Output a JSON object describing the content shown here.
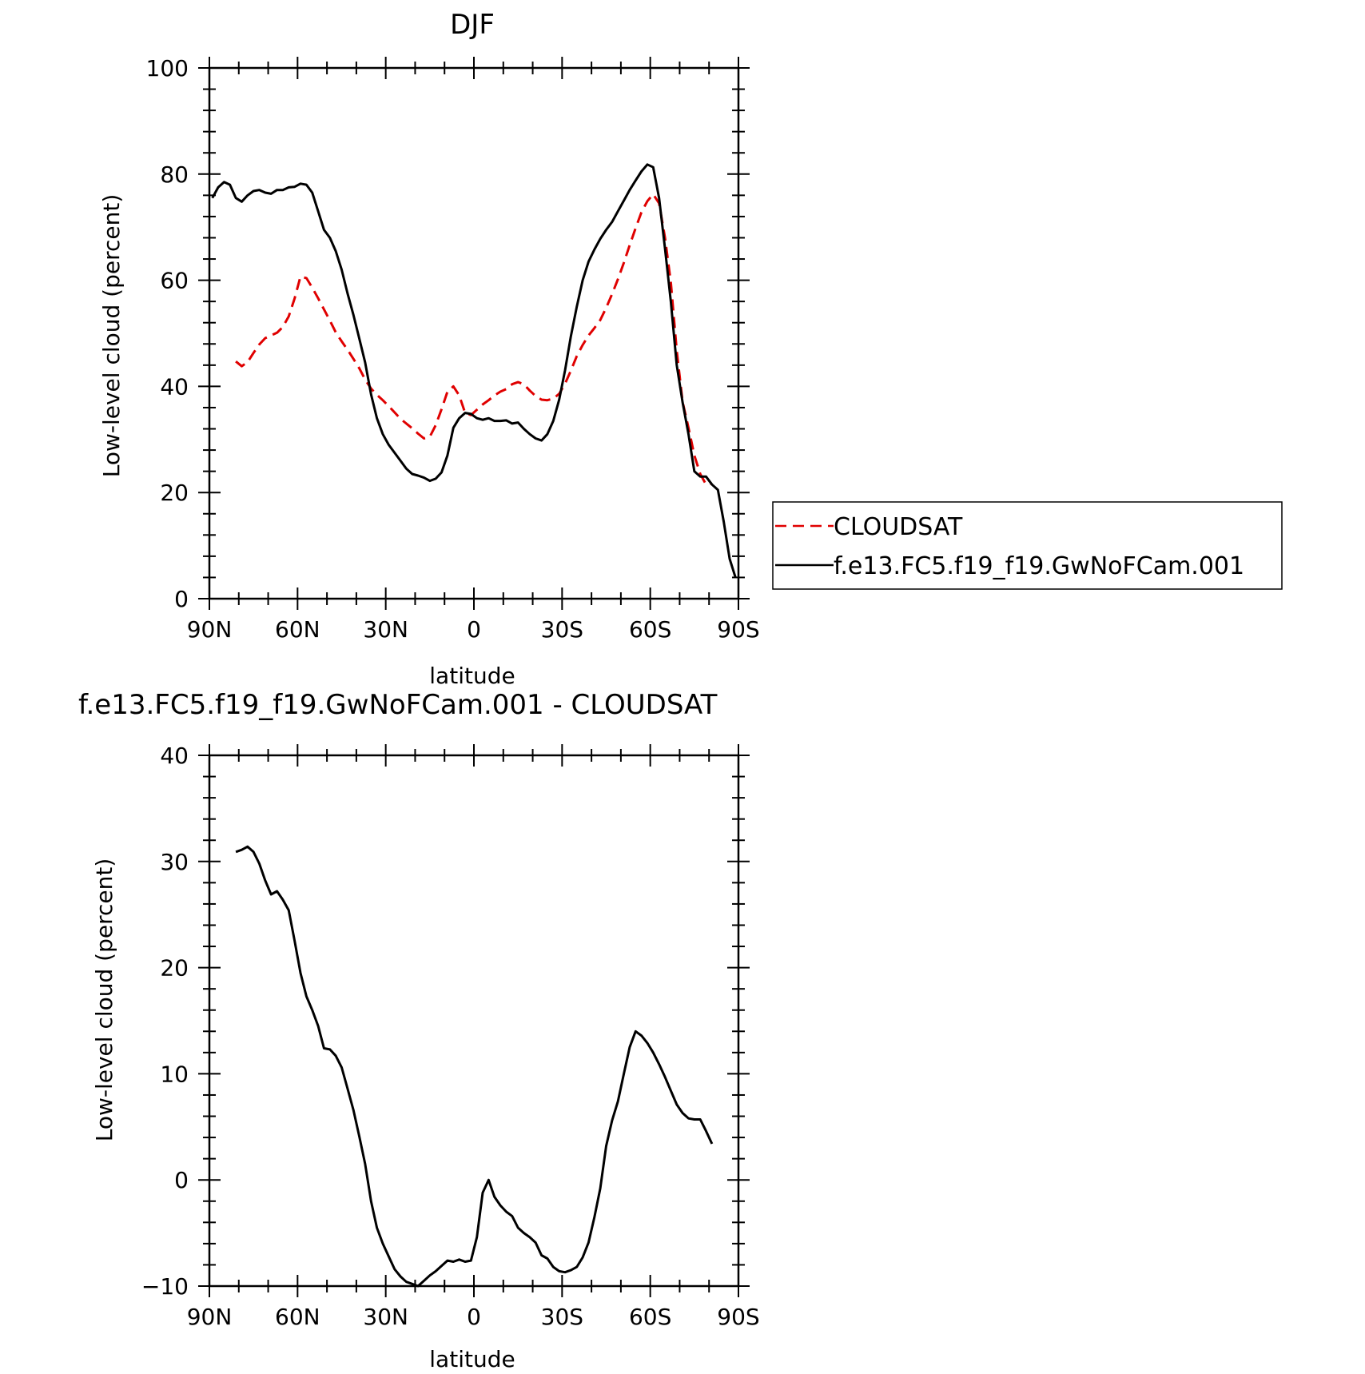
{
  "chart_data": [
    {
      "type": "line",
      "title": "DJF",
      "xlabel": "latitude",
      "ylabel": "Low-level cloud (percent)",
      "xlim": [
        90,
        -90
      ],
      "ylim": [
        0,
        100
      ],
      "x_ticks": [
        90,
        60,
        30,
        0,
        -30,
        -60,
        -90
      ],
      "x_tick_labels": [
        "90N",
        "60N",
        "30N",
        "0",
        "30S",
        "60S",
        "90S"
      ],
      "y_ticks": [
        0,
        20,
        40,
        60,
        80,
        100
      ],
      "y_tick_labels": [
        "0",
        "20",
        "40",
        "60",
        "80",
        "100"
      ],
      "grid": false,
      "legend_position": "right, outside the plot",
      "series": [
        {
          "name": "CLOUDSAT",
          "color": "#e00000",
          "dash": "dashed",
          "x": [
            81,
            79,
            77,
            75,
            73,
            71,
            69,
            67,
            65,
            63,
            61,
            59,
            57,
            55,
            53,
            51,
            49,
            47,
            45,
            43,
            41,
            39,
            37,
            35,
            33,
            31,
            29,
            27,
            25,
            23,
            21,
            19,
            17,
            15,
            13,
            11,
            9,
            7,
            5,
            3,
            1,
            -1,
            -3,
            -5,
            -7,
            -9,
            -11,
            -13,
            -15,
            -17,
            -19,
            -21,
            -23,
            -25,
            -27,
            -29,
            -31,
            -33,
            -35,
            -37,
            -39,
            -41,
            -43,
            -45,
            -47,
            -49,
            -51,
            -53,
            -55,
            -57,
            -59,
            -61,
            -63,
            -65,
            -67,
            -69,
            -71,
            -73,
            -75,
            -77,
            -79,
            -81
          ],
          "y": [
            44.7,
            43.8,
            44.6,
            46.3,
            47.9,
            49.1,
            49.6,
            50.1,
            51.2,
            53.2,
            56.6,
            60.7,
            60.4,
            58.6,
            56.6,
            54.5,
            52.4,
            50.2,
            48.5,
            46.9,
            45.2,
            43.4,
            41.3,
            39.6,
            38.4,
            37.4,
            36.3,
            35.1,
            33.9,
            33.0,
            32.1,
            31.1,
            30.2,
            30.5,
            32.7,
            35.7,
            39.0,
            40.0,
            38.3,
            35.0,
            34.6,
            35.6,
            36.6,
            37.4,
            38.3,
            39.0,
            39.5,
            40.4,
            40.8,
            40.4,
            39.2,
            38.2,
            37.5,
            37.4,
            37.7,
            38.6,
            40.5,
            43.0,
            45.7,
            47.8,
            49.6,
            51.0,
            52.5,
            54.8,
            57.4,
            60.2,
            63.3,
            66.6,
            69.8,
            72.8,
            74.9,
            76.2,
            74.5,
            68.0,
            59.6,
            46.7,
            37.1,
            32.2,
            27.0,
            23.5,
            21.5,
            21.7
          ]
        },
        {
          "name": "f.e13.FC5.f19_f19.GwNoFCam.001",
          "color": "#000000",
          "dash": "solid",
          "x": [
            89,
            87,
            85,
            83,
            81,
            79,
            77,
            75,
            73,
            71,
            69,
            67,
            65,
            63,
            61,
            59,
            57,
            55,
            53,
            51,
            49,
            47,
            45,
            43,
            41,
            39,
            37,
            35,
            33,
            31,
            29,
            27,
            25,
            23,
            21,
            19,
            17,
            15,
            13,
            11,
            9,
            7,
            5,
            3,
            1,
            -1,
            -3,
            -5,
            -7,
            -9,
            -11,
            -13,
            -15,
            -17,
            -19,
            -21,
            -23,
            -25,
            -27,
            -29,
            -31,
            -33,
            -35,
            -37,
            -39,
            -41,
            -43,
            -45,
            -47,
            -49,
            -51,
            -53,
            -55,
            -57,
            -59,
            -61,
            -63,
            -65,
            -67,
            -69,
            -71,
            -73,
            -75,
            -77,
            -79,
            -81,
            -83,
            -85,
            -87,
            -89
          ],
          "y": [
            75.5,
            77.5,
            78.5,
            78.0,
            75.5,
            74.8,
            76.0,
            76.8,
            77.0,
            76.5,
            76.3,
            77.0,
            77.0,
            77.5,
            77.6,
            78.2,
            78.0,
            76.5,
            73.0,
            69.5,
            68.0,
            65.5,
            62.0,
            57.5,
            53.5,
            49.0,
            44.5,
            38.5,
            34.0,
            31.0,
            29.0,
            27.5,
            26.0,
            24.5,
            23.5,
            23.2,
            22.8,
            22.2,
            22.6,
            23.8,
            27.0,
            32.2,
            34.0,
            35.0,
            34.8,
            34.0,
            33.7,
            34.0,
            33.5,
            33.5,
            33.6,
            33.0,
            33.2,
            32.0,
            31.0,
            30.2,
            29.8,
            31.0,
            33.5,
            37.5,
            43.0,
            49.5,
            55.0,
            60.0,
            63.5,
            65.8,
            67.8,
            69.5,
            71.0,
            73.0,
            75.0,
            77.0,
            78.8,
            80.5,
            81.8,
            81.3,
            75.5,
            66.0,
            56.0,
            44.0,
            37.0,
            31.0,
            24.0,
            23.0,
            23.0,
            21.5,
            20.5,
            14.5,
            7.5,
            4.0
          ]
        }
      ]
    },
    {
      "type": "line",
      "title": "f.e13.FC5.f19_f19.GwNoFCam.001 - CLOUDSAT",
      "xlabel": "latitude",
      "ylabel": "Low-level cloud (percent)",
      "xlim": [
        90,
        -90
      ],
      "ylim": [
        -10,
        40
      ],
      "x_ticks": [
        90,
        60,
        30,
        0,
        -30,
        -60,
        -90
      ],
      "x_tick_labels": [
        "90N",
        "60N",
        "30N",
        "0",
        "30S",
        "60S",
        "90S"
      ],
      "y_ticks": [
        -10,
        0,
        10,
        20,
        30,
        40
      ],
      "y_tick_labels": [
        "−10",
        "0",
        "10",
        "20",
        "30",
        "40"
      ],
      "grid": false,
      "series": [
        {
          "color": "#000000",
          "dash": "solid",
          "x": [
            81,
            79,
            77,
            75,
            73,
            71,
            69,
            67,
            65,
            63,
            61,
            59,
            57,
            55,
            53,
            51,
            49,
            47,
            45,
            43,
            41,
            39,
            37,
            35,
            33,
            31,
            29,
            27,
            25,
            23,
            21,
            19,
            17,
            15,
            13,
            11,
            9,
            7,
            5,
            3,
            1,
            -1,
            -3,
            -5,
            -7,
            -9,
            -11,
            -13,
            -15,
            -17,
            -19,
            -21,
            -23,
            -25,
            -27,
            -29,
            -31,
            -33,
            -35,
            -37,
            -39,
            -41,
            -43,
            -45,
            -47,
            -49,
            -51,
            -53,
            -55,
            -57,
            -59,
            -61,
            -63,
            -65,
            -67,
            -69,
            -71,
            -73,
            -75,
            -77,
            -79,
            -81
          ],
          "y": [
            30.9,
            31.1,
            31.4,
            30.9,
            29.8,
            28.2,
            26.9,
            27.2,
            26.4,
            25.4,
            22.5,
            19.5,
            17.3,
            16.0,
            14.5,
            12.4,
            12.3,
            11.7,
            10.6,
            8.6,
            6.6,
            4.1,
            1.5,
            -2.0,
            -4.5,
            -6.0,
            -7.2,
            -8.4,
            -9.1,
            -9.6,
            -9.8,
            -10.0,
            -9.5,
            -9.0,
            -8.6,
            -8.1,
            -7.6,
            -7.7,
            -7.5,
            -7.7,
            -7.6,
            -5.4,
            -1.2,
            0.0,
            -1.6,
            -2.4,
            -3.0,
            -3.4,
            -4.5,
            -5.0,
            -5.4,
            -5.9,
            -7.1,
            -7.4,
            -8.2,
            -8.6,
            -8.7,
            -8.5,
            -8.2,
            -7.3,
            -5.9,
            -3.5,
            -0.8,
            3.2,
            5.6,
            7.4,
            10.0,
            12.5,
            14.0,
            13.6,
            12.9,
            12.0,
            10.9,
            9.7,
            8.4,
            7.1,
            6.3,
            5.8,
            5.7,
            5.7,
            4.6,
            3.4
          ]
        }
      ]
    }
  ]
}
